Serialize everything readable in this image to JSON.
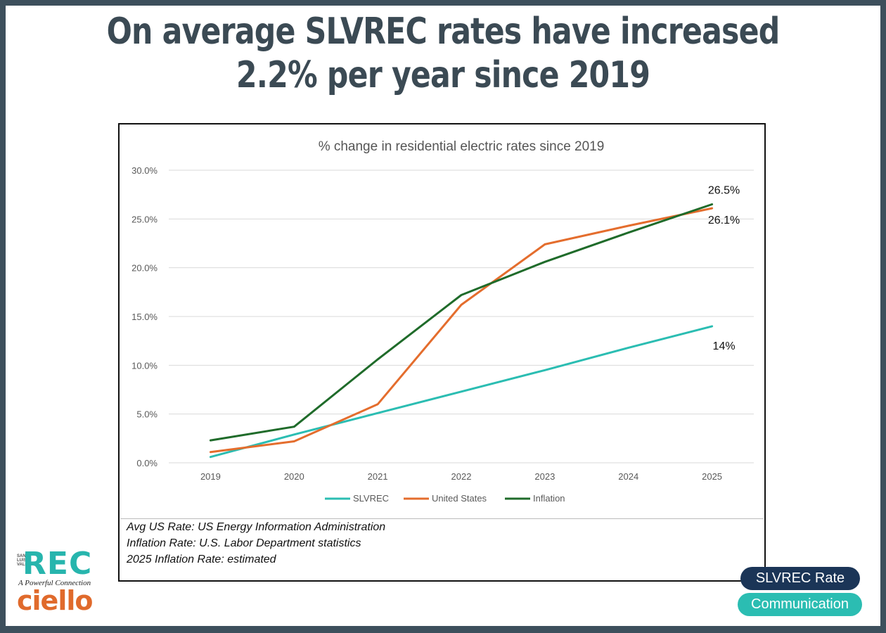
{
  "headline": {
    "line1": "On average SLVREC rates have increased",
    "line2": "2.2% per year since 2019"
  },
  "chart_data": {
    "type": "line",
    "title": "% change in residential electric rates since 2019",
    "xlabel": "",
    "ylabel": "",
    "x": [
      "2019",
      "2020",
      "2021",
      "2022",
      "2023",
      "2024",
      "2025"
    ],
    "yticks": [
      "0.0%",
      "5.0%",
      "10.0%",
      "15.0%",
      "20.0%",
      "25.0%",
      "30.0%"
    ],
    "ylim": [
      0,
      30
    ],
    "grid": true,
    "legend_position": "bottom",
    "series": [
      {
        "name": "SLVREC",
        "color": "#2bbdb2",
        "values": [
          0.6,
          2.9,
          5.1,
          7.3,
          9.5,
          11.8,
          14.0
        ]
      },
      {
        "name": "United States",
        "color": "#e46d2d",
        "values": [
          1.1,
          2.2,
          6.0,
          16.2,
          22.4,
          24.3,
          26.1
        ]
      },
      {
        "name": "Inflation",
        "color": "#1f6b2a",
        "values": [
          2.3,
          3.7,
          10.6,
          17.2,
          20.6,
          23.6,
          26.5
        ]
      }
    ],
    "annotations": [
      {
        "text": "26.5%",
        "series": "Inflation",
        "x": "2025",
        "y": 26.5
      },
      {
        "text": "26.1%",
        "series": "United States",
        "x": "2025",
        "y": 26.1
      },
      {
        "text": "14%",
        "series": "SLVREC",
        "x": "2025",
        "y": 14.0
      }
    ]
  },
  "sources": [
    "Avg US Rate: US Energy Information Administration",
    "Inflation Rate: U.S. Labor Department statistics",
    "2025 Inflation Rate: estimated"
  ],
  "logo": {
    "rec": "REC",
    "slv": "SAN LUIS VALLEY",
    "tagline": "A Powerful Connection",
    "ciello": "ciello"
  },
  "badges": {
    "rate": "SLVREC Rate",
    "communication": "Communication"
  }
}
